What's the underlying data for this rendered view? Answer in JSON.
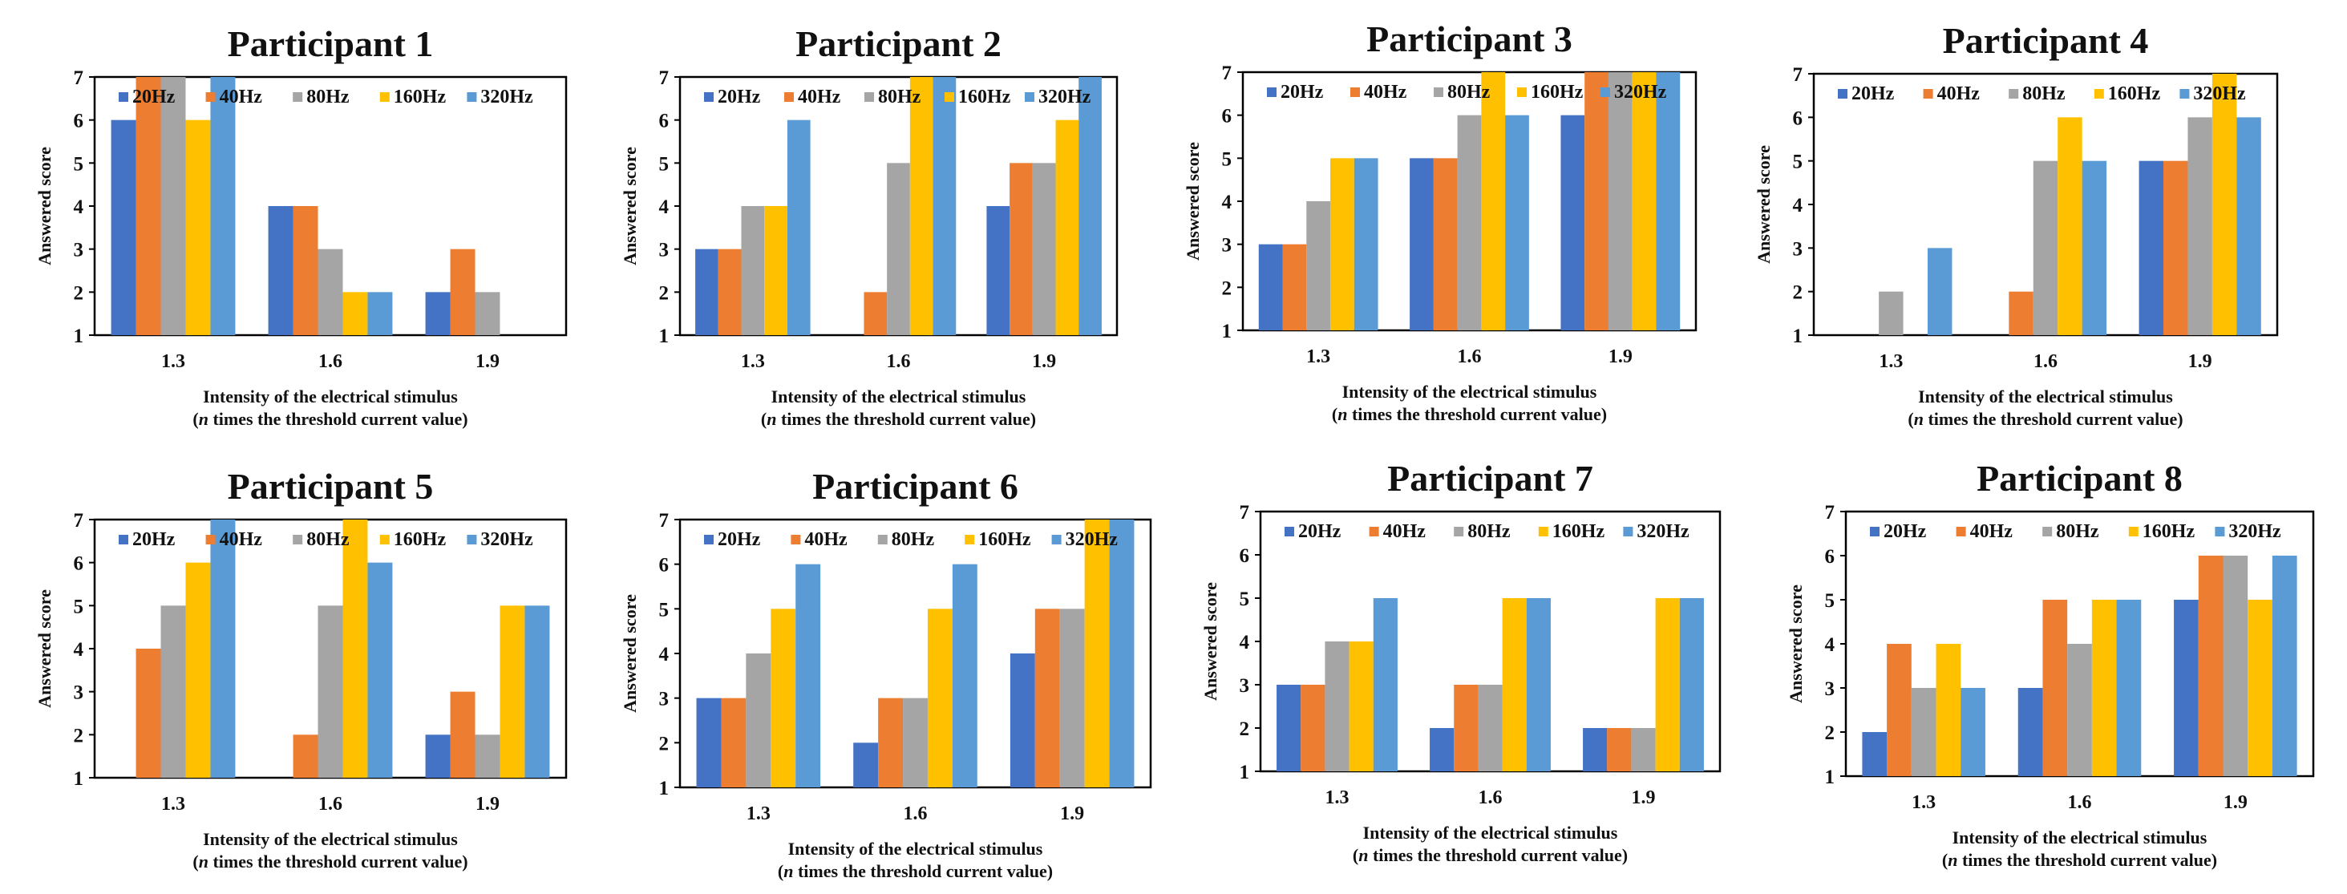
{
  "figure": {
    "background": "#ffffff"
  },
  "series_colors": {
    "20Hz": "#4472C4",
    "40Hz": "#ED7D31",
    "80Hz": "#A5A5A5",
    "160Hz": "#FFC000",
    "320Hz": "#5B9BD5"
  },
  "chart_data": [
    {
      "type": "bar",
      "title": "Participant 1",
      "xlabel": "Intensity of the electrical stimulus",
      "xlabel_prefix": "(",
      "xlabel_italic": "n",
      "xlabel_suffix": " times the threshold current value)",
      "ylabel": "Answered score",
      "ylim": [
        1,
        7
      ],
      "yticks": [
        "1",
        "2",
        "3",
        "4",
        "5",
        "6",
        "7"
      ],
      "categories": [
        "1.3",
        "1.6",
        "1.9"
      ],
      "legend": "top",
      "series": [
        {
          "name": "20Hz",
          "values": [
            6,
            4,
            2
          ]
        },
        {
          "name": "40Hz",
          "values": [
            7,
            4,
            3
          ]
        },
        {
          "name": "80Hz",
          "values": [
            7,
            3,
            2
          ]
        },
        {
          "name": "160Hz",
          "values": [
            6,
            2,
            1
          ]
        },
        {
          "name": "320Hz",
          "values": [
            7,
            2,
            1
          ]
        }
      ]
    },
    {
      "type": "bar",
      "title": "Participant 2",
      "xlabel": "Intensity of the electrical stimulus",
      "xlabel_prefix": "(",
      "xlabel_italic": "n",
      "xlabel_suffix": " times the threshold current value)",
      "ylabel": "Answered score",
      "ylim": [
        1,
        7
      ],
      "yticks": [
        "1",
        "2",
        "3",
        "4",
        "5",
        "6",
        "7"
      ],
      "categories": [
        "1.3",
        "1.6",
        "1.9"
      ],
      "legend": "top",
      "series": [
        {
          "name": "20Hz",
          "values": [
            3,
            1,
            4
          ]
        },
        {
          "name": "40Hz",
          "values": [
            3,
            2,
            5
          ]
        },
        {
          "name": "80Hz",
          "values": [
            4,
            5,
            5
          ]
        },
        {
          "name": "160Hz",
          "values": [
            4,
            7,
            6
          ]
        },
        {
          "name": "320Hz",
          "values": [
            6,
            7,
            7
          ]
        }
      ]
    },
    {
      "type": "bar",
      "title": "Participant 3",
      "xlabel": "Intensity of the electrical stimulus",
      "xlabel_prefix": "(",
      "xlabel_italic": "n",
      "xlabel_suffix": " times the threshold current value)",
      "ylabel": "Answered score",
      "ylim": [
        1,
        7
      ],
      "yticks": [
        "1",
        "2",
        "3",
        "4",
        "5",
        "6",
        "7"
      ],
      "categories": [
        "1.3",
        "1.6",
        "1.9"
      ],
      "legend": "top",
      "series": [
        {
          "name": "20Hz",
          "values": [
            3,
            5,
            6
          ]
        },
        {
          "name": "40Hz",
          "values": [
            3,
            5,
            7
          ]
        },
        {
          "name": "80Hz",
          "values": [
            4,
            6,
            7
          ]
        },
        {
          "name": "160Hz",
          "values": [
            5,
            7,
            7
          ]
        },
        {
          "name": "320Hz",
          "values": [
            5,
            6,
            7
          ]
        }
      ]
    },
    {
      "type": "bar",
      "title": "Participant 4",
      "xlabel": "Intensity of the electrical stimulus",
      "xlabel_prefix": "(",
      "xlabel_italic": "n",
      "xlabel_suffix": " times the threshold current value)",
      "ylabel": "Answered score",
      "ylim": [
        1,
        7
      ],
      "yticks": [
        "1",
        "2",
        "3",
        "4",
        "5",
        "6",
        "7"
      ],
      "categories": [
        "1.3",
        "1.6",
        "1.9"
      ],
      "legend": "top",
      "series": [
        {
          "name": "20Hz",
          "values": [
            1,
            1,
            5
          ]
        },
        {
          "name": "40Hz",
          "values": [
            1,
            2,
            5
          ]
        },
        {
          "name": "80Hz",
          "values": [
            2,
            5,
            6
          ]
        },
        {
          "name": "160Hz",
          "values": [
            1,
            6,
            7
          ]
        },
        {
          "name": "320Hz",
          "values": [
            3,
            5,
            6
          ]
        }
      ]
    },
    {
      "type": "bar",
      "title": "Participant 5",
      "xlabel": "Intensity of the electrical stimulus",
      "xlabel_prefix": "(",
      "xlabel_italic": "n",
      "xlabel_suffix": " times the threshold current value)",
      "ylabel": "Answered score",
      "ylim": [
        1,
        7
      ],
      "yticks": [
        "1",
        "2",
        "3",
        "4",
        "5",
        "6",
        "7"
      ],
      "categories": [
        "1.3",
        "1.6",
        "1.9"
      ],
      "legend": "top",
      "series": [
        {
          "name": "20Hz",
          "values": [
            1,
            1,
            2
          ]
        },
        {
          "name": "40Hz",
          "values": [
            4,
            2,
            3
          ]
        },
        {
          "name": "80Hz",
          "values": [
            5,
            5,
            2
          ]
        },
        {
          "name": "160Hz",
          "values": [
            6,
            7,
            5
          ]
        },
        {
          "name": "320Hz",
          "values": [
            7,
            6,
            5
          ]
        }
      ]
    },
    {
      "type": "bar",
      "title": "Participant 6",
      "xlabel": "Intensity of the electrical stimulus",
      "xlabel_prefix": "(",
      "xlabel_italic": "n",
      "xlabel_suffix": " times the threshold current value)",
      "ylabel": "Answered score",
      "ylim": [
        1,
        7
      ],
      "yticks": [
        "1",
        "2",
        "3",
        "4",
        "5",
        "6",
        "7"
      ],
      "categories": [
        "1.3",
        "1.6",
        "1.9"
      ],
      "legend": "top",
      "series": [
        {
          "name": "20Hz",
          "values": [
            3,
            2,
            4
          ]
        },
        {
          "name": "40Hz",
          "values": [
            3,
            3,
            5
          ]
        },
        {
          "name": "80Hz",
          "values": [
            4,
            3,
            5
          ]
        },
        {
          "name": "160Hz",
          "values": [
            5,
            5,
            7
          ]
        },
        {
          "name": "320Hz",
          "values": [
            6,
            6,
            7
          ]
        }
      ]
    },
    {
      "type": "bar",
      "title": "Participant 7",
      "xlabel": "Intensity of the electrical stimulus",
      "xlabel_prefix": "(",
      "xlabel_italic": "n",
      "xlabel_suffix": " times the threshold current value)",
      "ylabel": "Answered score",
      "ylim": [
        1,
        7
      ],
      "yticks": [
        "1",
        "2",
        "3",
        "4",
        "5",
        "6",
        "7"
      ],
      "categories": [
        "1.3",
        "1.6",
        "1.9"
      ],
      "legend": "top",
      "series": [
        {
          "name": "20Hz",
          "values": [
            3,
            2,
            2
          ]
        },
        {
          "name": "40Hz",
          "values": [
            3,
            3,
            2
          ]
        },
        {
          "name": "80Hz",
          "values": [
            4,
            3,
            2
          ]
        },
        {
          "name": "160Hz",
          "values": [
            4,
            5,
            5
          ]
        },
        {
          "name": "320Hz",
          "values": [
            5,
            5,
            5
          ]
        }
      ]
    },
    {
      "type": "bar",
      "title": "Participant 8",
      "xlabel": "Intensity of the electrical stimulus",
      "xlabel_prefix": "(",
      "xlabel_italic": "n",
      "xlabel_suffix": " times the threshold current value)",
      "ylabel": "Answered score",
      "ylim": [
        1,
        7
      ],
      "yticks": [
        "1",
        "2",
        "3",
        "4",
        "5",
        "6",
        "7"
      ],
      "categories": [
        "1.3",
        "1.6",
        "1.9"
      ],
      "legend": "top",
      "series": [
        {
          "name": "20Hz",
          "values": [
            2,
            3,
            5
          ]
        },
        {
          "name": "40Hz",
          "values": [
            4,
            5,
            6
          ]
        },
        {
          "name": "80Hz",
          "values": [
            3,
            4,
            6
          ]
        },
        {
          "name": "160Hz",
          "values": [
            4,
            5,
            5
          ]
        },
        {
          "name": "320Hz",
          "values": [
            3,
            5,
            6
          ]
        }
      ]
    }
  ]
}
